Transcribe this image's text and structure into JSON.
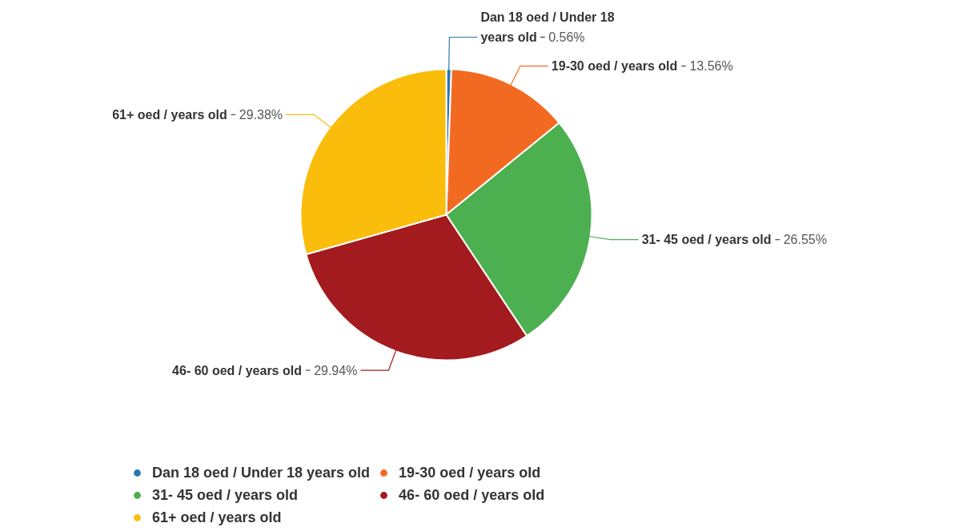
{
  "chart_data": {
    "type": "pie",
    "categories": [
      "Dan 18 oed / Under 18 years old",
      "19-30 oed / years old",
      "31- 45 oed / years old",
      "46- 60 oed / years old",
      "61+ oed / years old"
    ],
    "values": [
      0.56,
      13.56,
      26.55,
      29.94,
      29.38
    ],
    "colors": [
      "#2a77b0",
      "#f26a22",
      "#4caf50",
      "#a31b1e",
      "#fbbd0c"
    ],
    "value_labels": [
      "0.56%",
      "13.56%",
      "26.55%",
      "29.94%",
      "29.38%"
    ],
    "legend": "bottom"
  }
}
